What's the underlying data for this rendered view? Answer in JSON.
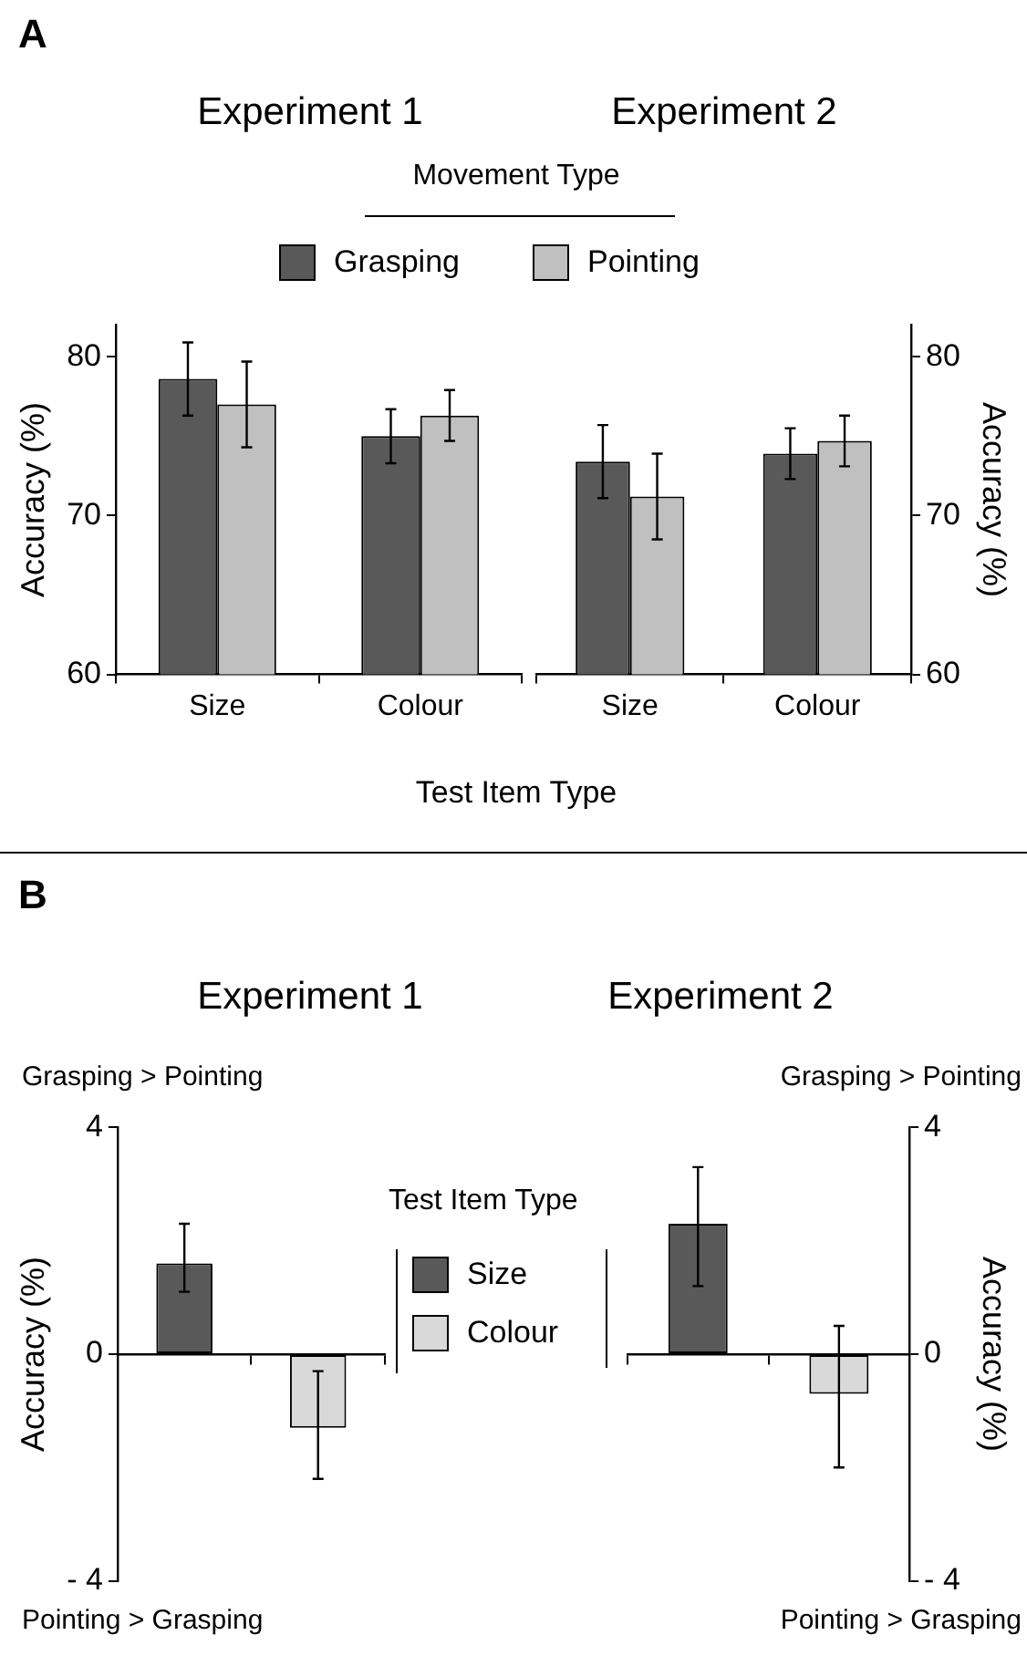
{
  "chart_data": [
    {
      "type": "bar",
      "title": "Experiment 1",
      "xlabel": "Test Item Type",
      "ylabel": "Accuracy (%)",
      "legend_title": "Movement Type",
      "legend": "top",
      "annotations": [
        "A"
      ],
      "categories": [
        "Size",
        "Colour"
      ],
      "ylim": [
        60,
        82
      ],
      "yticks": [
        60,
        70,
        80
      ],
      "series": [
        {
          "name": "Grasping",
          "color": "#595959",
          "values": [
            78.6,
            75.0
          ],
          "errors": [
            2.3,
            1.7
          ]
        },
        {
          "name": "Pointing",
          "color": "#c0c0c0",
          "values": [
            77.0,
            76.3
          ],
          "errors": [
            2.7,
            1.6
          ]
        }
      ]
    },
    {
      "type": "bar",
      "title": "Experiment 2",
      "ylabel": "Accuracy (%)",
      "categories": [
        "Size",
        "Colour"
      ],
      "ylim": [
        60,
        82
      ],
      "yticks": [
        60,
        70,
        80
      ],
      "series": [
        {
          "color": "#595959",
          "values": [
            73.4,
            73.9
          ],
          "errors": [
            2.3,
            1.6
          ]
        },
        {
          "color": "#c0c0c0",
          "values": [
            71.2,
            74.7
          ],
          "errors": [
            2.7,
            1.6
          ]
        }
      ]
    },
    {
      "type": "bar",
      "title": "Experiment 1",
      "ylabel": "Accuracy (%)",
      "legend_title": "Test Item Type",
      "legend": "right",
      "tick_labels": "y",
      "annotations": [
        "B",
        "Grasping > Pointing",
        "Pointing > Grasping"
      ],
      "categories": [
        null,
        null
      ],
      "ylim": [
        -4,
        4
      ],
      "yticks": [
        4,
        0,
        {
          "value": -4,
          "label": "- 4"
        }
      ],
      "series": [
        {
          "name": "Size",
          "color": "#595959",
          "values": [
            1.6,
            null
          ],
          "errors": [
            [
              1.1,
              2.3
            ],
            null
          ]
        },
        {
          "name": "Colour",
          "color": "#d9d9d9",
          "values": [
            null,
            -1.3
          ],
          "errors": [
            null,
            [
              -2.2,
              -0.3
            ]
          ]
        }
      ]
    },
    {
      "type": "bar",
      "title": "Experiment 2",
      "ylabel": "Accuracy (%)",
      "tick_labels": "y",
      "annotations": [
        "Grasping > Pointing",
        "Pointing > Grasping"
      ],
      "categories": [
        null,
        null
      ],
      "ylim": [
        -4,
        4
      ],
      "yticks": [
        4,
        0,
        {
          "value": -4,
          "label": "- 4"
        }
      ],
      "series": [
        {
          "color": "#595959",
          "values": [
            2.3,
            null
          ],
          "errors": [
            [
              1.2,
              3.3
            ],
            null
          ]
        },
        {
          "color": "#d9d9d9",
          "values": [
            null,
            -0.7
          ],
          "errors": [
            null,
            [
              -2.0,
              0.5
            ]
          ]
        }
      ]
    }
  ]
}
